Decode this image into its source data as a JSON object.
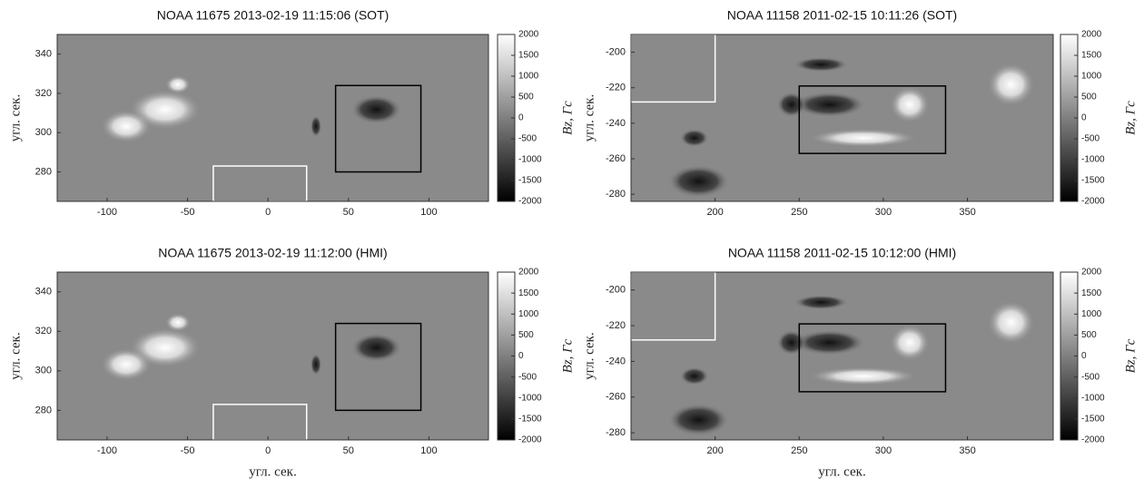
{
  "chart_data": [
    {
      "type": "image",
      "title": "NOAA 11675 2013-02-19 11:15:06 (SOT)",
      "ylabel": "угл. сек.",
      "xlim": [
        -131,
        137
      ],
      "ylim": [
        265,
        350
      ],
      "xticks": [
        -100,
        -50,
        0,
        50,
        100
      ],
      "yticks": [
        280,
        300,
        320,
        340
      ],
      "colorbar": {
        "label": "Bz, Гс",
        "lim": [
          -2000,
          2000
        ],
        "ticks": [
          2000,
          1500,
          1000,
          500,
          0,
          -500,
          -1000,
          -1500,
          -2000
        ]
      },
      "boxes": [
        {
          "x": [
            42,
            95
          ],
          "y": [
            280,
            324
          ],
          "color": "#000000"
        },
        {
          "x": [
            -34,
            24
          ],
          "y": [
            265,
            283
          ],
          "color": "#ffffff"
        }
      ]
    },
    {
      "type": "image",
      "title": "NOAA 11158 2011-02-15 10:11:26 (SOT)",
      "ylabel": "угл. сек.",
      "xlim": [
        150,
        401
      ],
      "ylim": [
        -284,
        -190
      ],
      "xticks": [
        200,
        250,
        300,
        350
      ],
      "yticks": [
        -200,
        -220,
        -240,
        -260,
        -280
      ],
      "colorbar": {
        "label": "Bz, Гс",
        "lim": [
          -2000,
          2000
        ],
        "ticks": [
          2000,
          1500,
          1000,
          500,
          0,
          -500,
          -1000,
          -1500,
          -2000
        ]
      },
      "boxes": [
        {
          "x": [
            250,
            337
          ],
          "y": [
            -257,
            -219
          ],
          "color": "#000000"
        },
        {
          "x": [
            150,
            200
          ],
          "y": [
            -228,
            -190
          ],
          "color": "#ffffff"
        }
      ]
    },
    {
      "type": "image",
      "title": "NOAA 11675 2013-02-19 11:12:00 (HMI)",
      "xlabel": "угл. сек.",
      "ylabel": "угл. сек.",
      "xlim": [
        -131,
        137
      ],
      "ylim": [
        265,
        350
      ],
      "xticks": [
        -100,
        -50,
        0,
        50,
        100
      ],
      "yticks": [
        280,
        300,
        320,
        340
      ],
      "colorbar": {
        "label": "Bz, Гс",
        "lim": [
          -2000,
          2000
        ],
        "ticks": [
          2000,
          1500,
          1000,
          500,
          0,
          -500,
          -1000,
          -1500,
          -2000
        ]
      },
      "boxes": [
        {
          "x": [
            42,
            95
          ],
          "y": [
            280,
            324
          ],
          "color": "#000000"
        },
        {
          "x": [
            -34,
            24
          ],
          "y": [
            265,
            283
          ],
          "color": "#ffffff"
        }
      ]
    },
    {
      "type": "image",
      "title": "NOAA 11158 2011-02-15 10:12:00 (HMI)",
      "xlabel": "угл. сек.",
      "ylabel": "угл. сек.",
      "xlim": [
        150,
        401
      ],
      "ylim": [
        -284,
        -190
      ],
      "xticks": [
        200,
        250,
        300,
        350
      ],
      "yticks": [
        -200,
        -220,
        -240,
        -260,
        -280
      ],
      "colorbar": {
        "label": "Bz, Гс",
        "lim": [
          -2000,
          2000
        ],
        "ticks": [
          2000,
          1500,
          1000,
          500,
          0,
          -500,
          -1000,
          -1500,
          -2000
        ]
      },
      "boxes": [
        {
          "x": [
            250,
            337
          ],
          "y": [
            -257,
            -219
          ],
          "color": "#000000"
        },
        {
          "x": [
            150,
            200
          ],
          "y": [
            -228,
            -190
          ],
          "color": "#ffffff"
        }
      ]
    }
  ]
}
